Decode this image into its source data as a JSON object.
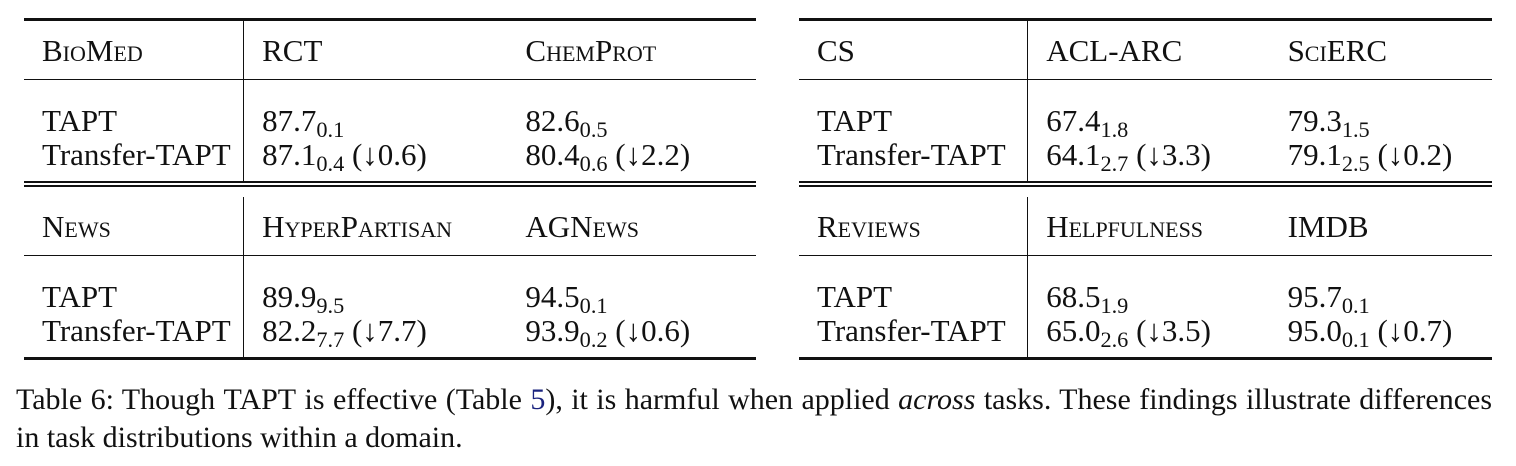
{
  "tables": [
    {
      "blocks": [
        {
          "domain": "BioMed",
          "tasks": [
            "RCT",
            "ChemProt"
          ],
          "rows": [
            {
              "method": "TAPT",
              "method_prefix": "",
              "cells": [
                {
                  "value": "87.7",
                  "std": "0.1",
                  "delta": ""
                },
                {
                  "value": "82.6",
                  "std": "0.5",
                  "delta": ""
                }
              ]
            },
            {
              "method": "TAPT",
              "method_prefix": "Transfer-",
              "cells": [
                {
                  "value": "87.1",
                  "std": "0.4",
                  "delta": "(↓0.6)"
                },
                {
                  "value": "80.4",
                  "std": "0.6",
                  "delta": "(↓2.2)"
                }
              ]
            }
          ]
        },
        {
          "domain": "News",
          "tasks": [
            "HyperPartisan",
            "AGNews"
          ],
          "rows": [
            {
              "method": "TAPT",
              "method_prefix": "",
              "cells": [
                {
                  "value": "89.9",
                  "std": "9.5",
                  "delta": ""
                },
                {
                  "value": "94.5",
                  "std": "0.1",
                  "delta": ""
                }
              ]
            },
            {
              "method": "TAPT",
              "method_prefix": "Transfer-",
              "cells": [
                {
                  "value": "82.2",
                  "std": "7.7",
                  "delta": "(↓7.7)"
                },
                {
                  "value": "93.9",
                  "std": "0.2",
                  "delta": "(↓0.6)"
                }
              ]
            }
          ]
        }
      ]
    },
    {
      "blocks": [
        {
          "domain": "CS",
          "tasks": [
            "ACL-ARC",
            "SciERC"
          ],
          "rows": [
            {
              "method": "TAPT",
              "method_prefix": "",
              "cells": [
                {
                  "value": "67.4",
                  "std": "1.8",
                  "delta": ""
                },
                {
                  "value": "79.3",
                  "std": "1.5",
                  "delta": ""
                }
              ]
            },
            {
              "method": "TAPT",
              "method_prefix": "Transfer-",
              "cells": [
                {
                  "value": "64.1",
                  "std": "2.7",
                  "delta": "(↓3.3)"
                },
                {
                  "value": "79.1",
                  "std": "2.5",
                  "delta": "(↓0.2)"
                }
              ]
            }
          ]
        },
        {
          "domain": "Reviews",
          "tasks": [
            "Helpfulness",
            "IMDB"
          ],
          "rows": [
            {
              "method": "TAPT",
              "method_prefix": "",
              "cells": [
                {
                  "value": "68.5",
                  "std": "1.9",
                  "delta": ""
                },
                {
                  "value": "95.7",
                  "std": "0.1",
                  "delta": ""
                }
              ]
            },
            {
              "method": "TAPT",
              "method_prefix": "Transfer-",
              "cells": [
                {
                  "value": "65.0",
                  "std": "2.6",
                  "delta": "(↓3.5)"
                },
                {
                  "value": "95.0",
                  "std": "0.1",
                  "delta": "(↓0.7)"
                }
              ]
            }
          ]
        }
      ]
    }
  ],
  "caption": {
    "label": "Table 6:",
    "text_1": "Though",
    "tapt": "TAPT",
    "text_2": "is effective (Table",
    "ref": "5",
    "text_3": "), it is harmful when applied",
    "emphasis": "across",
    "text_4": "tasks.  These findings illustrate differences in task distributions within a domain."
  }
}
